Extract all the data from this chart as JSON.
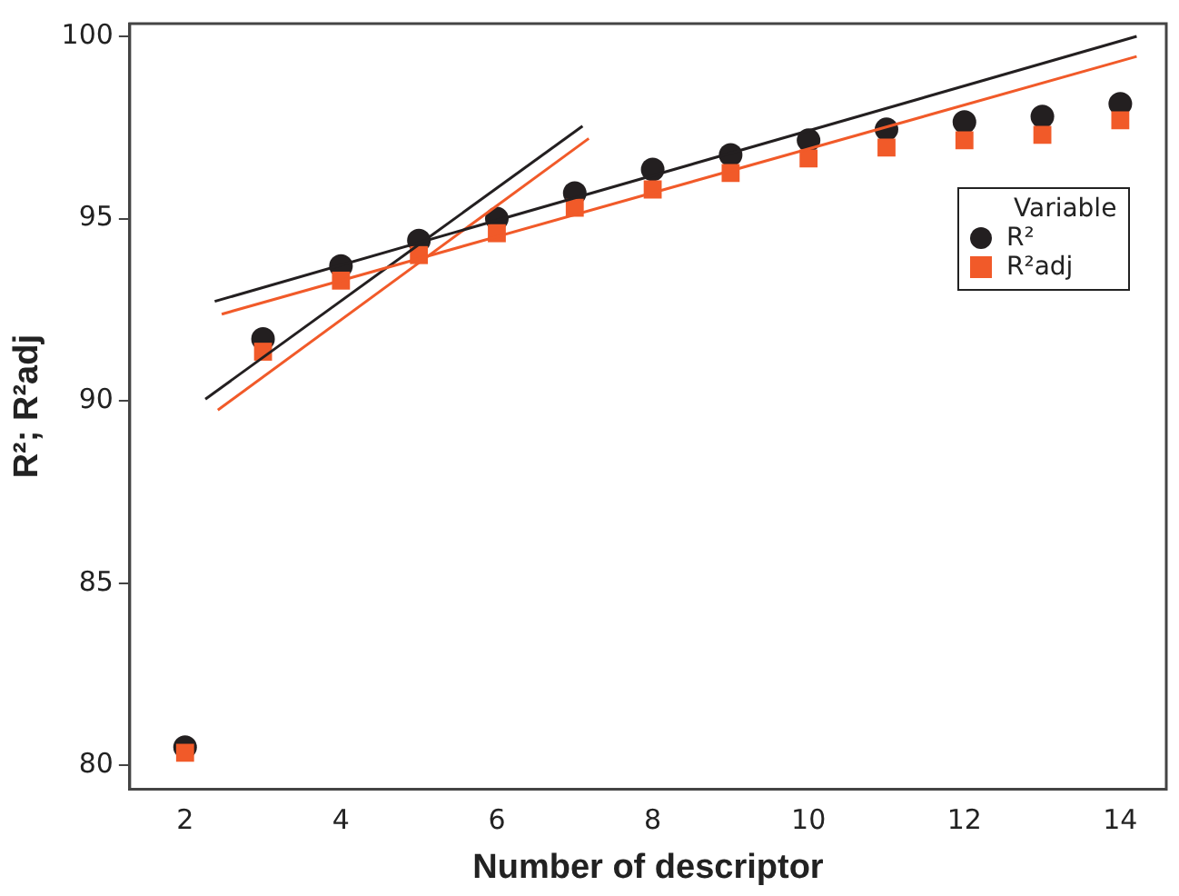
{
  "chart_data": {
    "type": "scatter",
    "xlabel": "Number of descriptor",
    "ylabel": "R²; R²adj",
    "legend_title": "Variable",
    "legend": "top right",
    "grid": false,
    "xlim": [
      1.29,
      14.59
    ],
    "xticks": [
      2,
      4,
      6,
      8,
      10,
      12,
      14
    ],
    "ylim": [
      79.35,
      100.35
    ],
    "yticks": [
      80,
      85,
      90,
      95,
      100
    ],
    "x": [
      2,
      3,
      4,
      5,
      6,
      7,
      8,
      9,
      10,
      11,
      12,
      13,
      14
    ],
    "series": [
      {
        "name": "R²",
        "color": "#231f20",
        "marker": "circle",
        "values": [
          80.5,
          91.7,
          93.7,
          94.4,
          95.0,
          95.7,
          96.35,
          96.75,
          97.15,
          97.45,
          97.65,
          97.8,
          98.15
        ]
      },
      {
        "name": "R²adj",
        "color": "#f15a29",
        "marker": "square",
        "values": [
          80.35,
          91.35,
          93.3,
          94.0,
          94.6,
          95.3,
          95.8,
          96.25,
          96.65,
          96.95,
          97.15,
          97.3,
          97.7
        ]
      },
      {
        "type": "line",
        "color": "#231f20",
        "marker": "none",
        "x": [
          2.26,
          7.1
        ],
        "values": [
          90.05,
          97.54
        ]
      },
      {
        "type": "line",
        "color": "#f15a29",
        "marker": "none",
        "x": [
          2.42,
          7.18
        ],
        "values": [
          89.75,
          97.2
        ]
      },
      {
        "type": "line",
        "color": "#231f20",
        "marker": "none",
        "x": [
          2.38,
          14.21
        ],
        "values": [
          92.73,
          100.0
        ]
      },
      {
        "type": "line",
        "color": "#f15a29",
        "marker": "none",
        "x": [
          2.47,
          14.21
        ],
        "values": [
          92.38,
          99.45
        ]
      }
    ]
  }
}
